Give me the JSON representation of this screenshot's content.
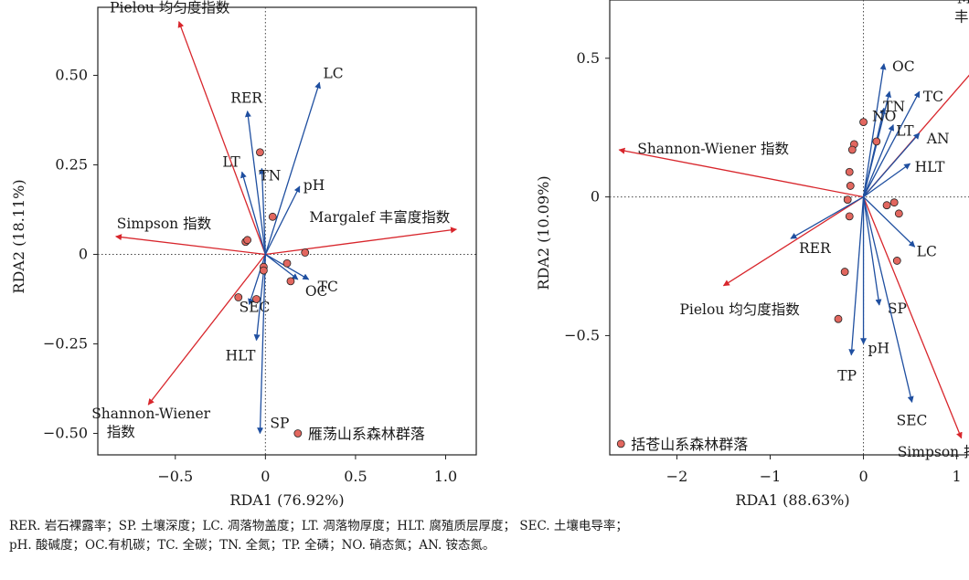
{
  "figure_caption": {
    "line1": "RER. 岩石裸露率；SP. 土壤深度；LC. 凋落物盖度；LT. 凋落物厚度；HLT. 腐殖质层厚度； SEC. 土壤电导率；",
    "line2": "pH. 酸碱度；OC.有机碳；TC. 全碳；TN. 全氮；TP. 全磷；NO. 硝态氮；AN. 铵态氮。"
  },
  "colors": {
    "env_arrow": "#1f4fa0",
    "species_arrow": "#d8262c",
    "site_fill": "#e2675f",
    "site_stroke": "#222222"
  },
  "chart_data": [
    {
      "type": "scatter",
      "xlabel": "RDA1 (76.92%)",
      "ylabel": "RDA2 (18.11%)",
      "xlim": [
        -0.93,
        1.17
      ],
      "ylim": [
        -0.56,
        0.69
      ],
      "xticks": [
        -0.5,
        0,
        0.5,
        1.0
      ],
      "xtick_labels": [
        "−0.5",
        "0",
        "0.5",
        "1.0"
      ],
      "yticks": [
        -0.5,
        -0.25,
        0,
        0.25,
        0.5
      ],
      "ytick_labels": [
        "−0.50",
        "−0.25",
        "0",
        "0.25",
        "0.50"
      ],
      "legend": "雁荡山系森林群落",
      "legend_placement": "bottom-right",
      "env_arrows": [
        {
          "label": "LC",
          "x": 0.3,
          "y": 0.48
        },
        {
          "label": "RER",
          "x": -0.1,
          "y": 0.4
        },
        {
          "label": "LT",
          "x": -0.13,
          "y": 0.23
        },
        {
          "label": "TN",
          "x": -0.02,
          "y": 0.24
        },
        {
          "label": "pH",
          "x": 0.19,
          "y": 0.19
        },
        {
          "label": "TC",
          "x": 0.24,
          "y": -0.07
        },
        {
          "label": "OC",
          "x": 0.18,
          "y": -0.07
        },
        {
          "label": "SEC",
          "x": -0.09,
          "y": -0.14
        },
        {
          "label": "HLT",
          "x": -0.05,
          "y": -0.24
        },
        {
          "label": "SP",
          "x": -0.03,
          "y": -0.5
        }
      ],
      "species_arrows": [
        {
          "label": "Pielou 均匀度指数",
          "x": -0.48,
          "y": 0.65
        },
        {
          "label": "Simpson 指数",
          "x": -0.83,
          "y": 0.05
        },
        {
          "label": "Margalef 丰富度指数",
          "x": 1.06,
          "y": 0.07
        },
        {
          "label": "Shannon-Wiener",
          "label2": "指数",
          "x": -0.65,
          "y": -0.42
        }
      ],
      "sites": [
        {
          "x": -0.03,
          "y": 0.285
        },
        {
          "x": 0.04,
          "y": 0.105
        },
        {
          "x": -0.11,
          "y": 0.035
        },
        {
          "x": -0.1,
          "y": 0.04
        },
        {
          "x": -0.01,
          "y": -0.035
        },
        {
          "x": -0.01,
          "y": -0.045
        },
        {
          "x": 0.12,
          "y": -0.025
        },
        {
          "x": 0.22,
          "y": 0.005
        },
        {
          "x": 0.14,
          "y": -0.075
        },
        {
          "x": -0.05,
          "y": -0.125
        },
        {
          "x": -0.15,
          "y": -0.12
        },
        {
          "x": 0.18,
          "y": -0.5
        }
      ]
    },
    {
      "type": "scatter",
      "xlabel": "RDA1 (88.63%)",
      "ylabel": "RDA2 (10.09%)",
      "xlim": [
        -2.72,
        1.2
      ],
      "ylim": [
        -0.93,
        0.71
      ],
      "xticks": [
        -2,
        -1,
        0,
        1
      ],
      "xtick_labels": [
        "−2",
        "−1",
        "0",
        "1"
      ],
      "yticks": [
        -0.5,
        0,
        0.5
      ],
      "ytick_labels": [
        "−0.5",
        "0",
        "0.5"
      ],
      "legend": "括苍山系森林群落",
      "legend_placement": "bottom-left",
      "env_arrows": [
        {
          "label": "OC",
          "x": 0.22,
          "y": 0.48
        },
        {
          "label": "TN",
          "x": 0.28,
          "y": 0.38
        },
        {
          "label": "TC",
          "x": 0.6,
          "y": 0.38
        },
        {
          "label": "NO",
          "x": 0.22,
          "y": 0.32
        },
        {
          "label": "LT",
          "x": 0.32,
          "y": 0.26
        },
        {
          "label": "AN",
          "x": 0.6,
          "y": 0.23
        },
        {
          "label": "HLT",
          "x": 0.5,
          "y": 0.12
        },
        {
          "label": "RER",
          "x": -0.78,
          "y": -0.15
        },
        {
          "label": "LC",
          "x": 0.55,
          "y": -0.18
        },
        {
          "label": "SP",
          "x": 0.17,
          "y": -0.39
        },
        {
          "label": "pH",
          "x": 0.0,
          "y": -0.53
        },
        {
          "label": "TP",
          "x": -0.13,
          "y": -0.57
        },
        {
          "label": "SEC",
          "x": 0.52,
          "y": -0.74
        }
      ],
      "species_arrows": [
        {
          "label": "Margalef",
          "label2": "丰富度指数",
          "x": 1.55,
          "y": 0.6
        },
        {
          "label": "Shannon-Wiener 指数",
          "x": -2.62,
          "y": 0.17
        },
        {
          "label": "Pielou 均匀度指数",
          "x": -1.5,
          "y": -0.32
        },
        {
          "label": "Simpson 指数",
          "x": 1.05,
          "y": -0.87
        }
      ],
      "sites": [
        {
          "x": 0.0,
          "y": 0.27
        },
        {
          "x": -0.1,
          "y": 0.19
        },
        {
          "x": -0.12,
          "y": 0.17
        },
        {
          "x": 0.14,
          "y": 0.2
        },
        {
          "x": -0.15,
          "y": 0.09
        },
        {
          "x": -0.14,
          "y": 0.04
        },
        {
          "x": -0.17,
          "y": -0.01
        },
        {
          "x": -0.15,
          "y": -0.07
        },
        {
          "x": 0.33,
          "y": -0.02
        },
        {
          "x": 0.25,
          "y": -0.03
        },
        {
          "x": 0.38,
          "y": -0.06
        },
        {
          "x": 0.36,
          "y": -0.23
        },
        {
          "x": -0.2,
          "y": -0.27
        },
        {
          "x": -0.27,
          "y": -0.44
        },
        {
          "x": -2.6,
          "y": -0.89
        }
      ]
    }
  ]
}
